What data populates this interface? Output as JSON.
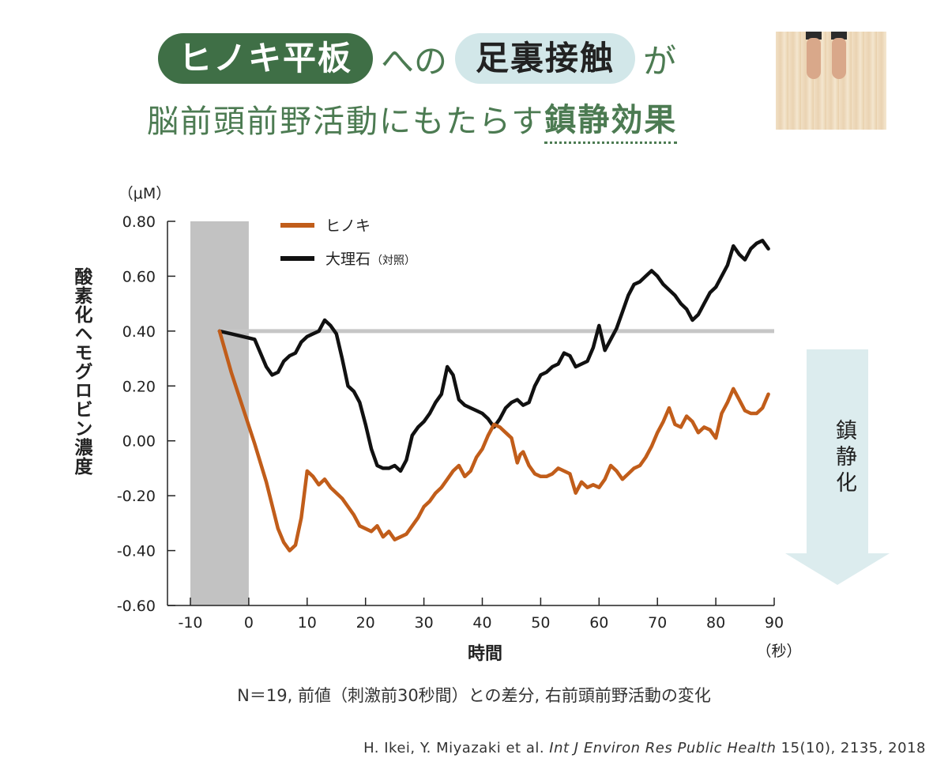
{
  "title": {
    "line1": {
      "pill1": "ヒノキ平板",
      "mid": "への",
      "pill2": "足裏接触",
      "end": "が"
    },
    "line2": {
      "plain": "脳前頭前野活動にもたらす",
      "emph": "鎮静効果"
    }
  },
  "arrow_label": "鎮静化",
  "note": "N＝19, 前値（刺激前30秒間）との差分, 右前頭前野活動の変化",
  "citation": {
    "authors": "H. Ikei, Y. Miyazaki et al. ",
    "journal": "Int J Environ Res Public Health",
    "ref": " 15(10), 2135, 2018"
  },
  "colors": {
    "hinoki": "#c15d1a",
    "marble": "#111111",
    "baseline": "#c6c6c6",
    "pre_period": "#c2c2c2",
    "arrow": "#dcecee",
    "green": "#3f6f46"
  },
  "chart_data": {
    "type": "line",
    "title": "",
    "xlabel": "時間",
    "xunit": "（秒）",
    "ylabel": "酸素化ヘモグロビン濃度",
    "yunit": "（μM）",
    "xlim": [
      -10,
      90
    ],
    "ylim": [
      -0.6,
      0.8
    ],
    "xticks": [
      -10,
      0,
      10,
      20,
      30,
      40,
      50,
      60,
      70,
      80,
      90
    ],
    "yticks": [
      0.8,
      0.6,
      0.4,
      0.2,
      0.0,
      -0.2,
      -0.4,
      -0.6
    ],
    "ytick_labels": [
      "0.80",
      "0.60",
      "0.40",
      "0.20",
      "0.00",
      "-0.20",
      "-0.40",
      "-0.60"
    ],
    "baseline_y": 0.4,
    "pre_period": [
      -10,
      0
    ],
    "legend_position": "top-left",
    "series": [
      {
        "name": "ヒノキ",
        "x": [
          -5,
          -3,
          -1,
          1,
          3,
          5,
          6,
          7,
          8,
          9,
          10,
          11,
          12,
          13,
          14,
          15,
          16,
          17,
          18,
          19,
          20,
          21,
          22,
          23,
          24,
          25,
          26,
          27,
          28,
          29,
          30,
          31,
          32,
          33,
          34,
          35,
          36,
          37,
          38,
          39,
          40,
          41,
          42,
          43,
          44,
          45,
          46,
          46.5,
          47,
          48,
          49,
          50,
          51,
          52,
          53,
          54,
          55,
          56,
          57,
          58,
          59,
          60,
          61,
          62,
          63,
          64,
          65,
          66,
          67,
          68,
          69,
          70,
          71,
          72,
          73,
          74,
          75,
          76,
          77,
          78,
          79,
          80,
          81,
          82,
          83,
          84,
          85,
          86,
          87,
          88,
          89
        ],
        "values": [
          0.4,
          0.25,
          0.12,
          -0.01,
          -0.15,
          -0.32,
          -0.37,
          -0.4,
          -0.38,
          -0.28,
          -0.11,
          -0.13,
          -0.16,
          -0.14,
          -0.17,
          -0.19,
          -0.21,
          -0.24,
          -0.27,
          -0.31,
          -0.32,
          -0.33,
          -0.31,
          -0.35,
          -0.33,
          -0.36,
          -0.35,
          -0.34,
          -0.31,
          -0.28,
          -0.24,
          -0.22,
          -0.19,
          -0.17,
          -0.14,
          -0.11,
          -0.09,
          -0.13,
          -0.11,
          -0.06,
          -0.03,
          0.02,
          0.06,
          0.05,
          0.03,
          0.01,
          -0.08,
          -0.05,
          -0.04,
          -0.09,
          -0.12,
          -0.13,
          -0.13,
          -0.12,
          -0.1,
          -0.11,
          -0.12,
          -0.19,
          -0.15,
          -0.17,
          -0.16,
          -0.17,
          -0.14,
          -0.09,
          -0.11,
          -0.14,
          -0.12,
          -0.1,
          -0.09,
          -0.06,
          -0.02,
          0.03,
          0.07,
          0.12,
          0.06,
          0.05,
          0.09,
          0.07,
          0.03,
          0.05,
          0.04,
          0.01,
          0.1,
          0.14,
          0.19,
          0.15,
          0.11,
          0.1,
          0.1,
          0.12,
          0.17
        ]
      },
      {
        "name": "大理石",
        "x": [
          -5,
          -3,
          -1,
          1,
          2,
          3,
          4,
          5,
          6,
          7,
          8,
          9,
          10,
          11,
          12,
          13,
          14,
          15,
          16,
          17,
          18,
          19,
          20,
          21,
          22,
          23,
          24,
          25,
          26,
          27,
          28,
          29,
          30,
          31,
          32,
          33,
          34,
          35,
          36,
          37,
          38,
          39,
          40,
          41,
          42,
          43,
          44,
          45,
          46,
          47,
          48,
          49,
          50,
          51,
          52,
          53,
          54,
          55,
          56,
          57,
          58,
          59,
          60,
          61,
          62,
          63,
          64,
          65,
          66,
          67,
          68,
          69,
          70,
          71,
          72,
          73,
          74,
          75,
          76,
          77,
          78,
          79,
          80,
          81,
          82,
          83,
          84,
          85,
          86,
          87,
          88,
          89
        ],
        "values": [
          0.4,
          0.39,
          0.38,
          0.37,
          0.32,
          0.27,
          0.24,
          0.25,
          0.29,
          0.31,
          0.32,
          0.36,
          0.38,
          0.39,
          0.4,
          0.44,
          0.42,
          0.39,
          0.3,
          0.2,
          0.18,
          0.14,
          0.06,
          -0.03,
          -0.09,
          -0.1,
          -0.1,
          -0.09,
          -0.11,
          -0.07,
          0.02,
          0.05,
          0.07,
          0.1,
          0.14,
          0.17,
          0.27,
          0.24,
          0.15,
          0.13,
          0.12,
          0.11,
          0.1,
          0.08,
          0.05,
          0.08,
          0.12,
          0.14,
          0.15,
          0.13,
          0.14,
          0.2,
          0.24,
          0.25,
          0.27,
          0.28,
          0.32,
          0.31,
          0.27,
          0.28,
          0.29,
          0.34,
          0.42,
          0.33,
          0.37,
          0.41,
          0.47,
          0.53,
          0.57,
          0.58,
          0.6,
          0.62,
          0.6,
          0.57,
          0.55,
          0.53,
          0.5,
          0.48,
          0.44,
          0.46,
          0.5,
          0.54,
          0.56,
          0.6,
          0.64,
          0.71,
          0.68,
          0.66,
          0.7,
          0.72,
          0.73,
          0.7
        ]
      }
    ]
  },
  "legend": {
    "hinoki": "ヒノキ",
    "marble": "大理石",
    "marble_note": "（対照）"
  }
}
